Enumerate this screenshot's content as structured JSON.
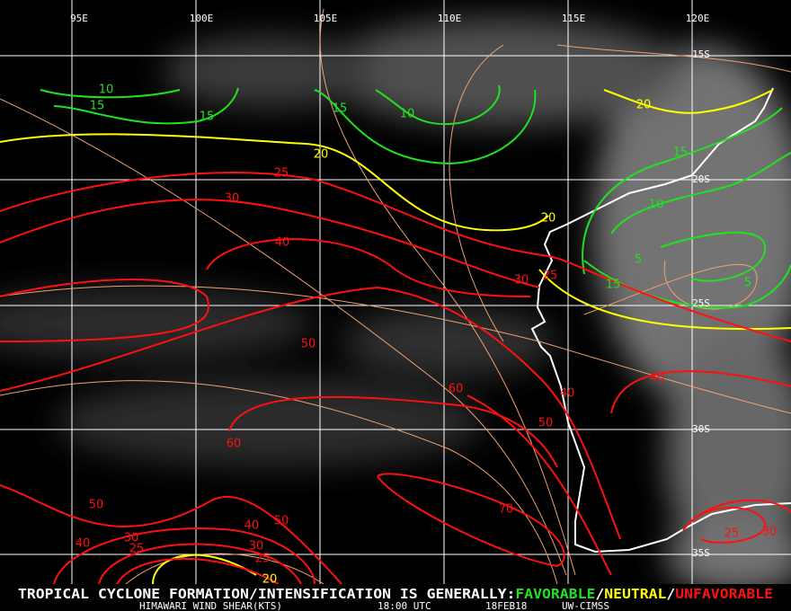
{
  "map": {
    "lon_labels": [
      "95E",
      "100E",
      "105E",
      "110E",
      "115E",
      "120E"
    ],
    "lat_labels": [
      "15S",
      "20S",
      "25S",
      "30S",
      "35S"
    ],
    "contour_labels": [
      10,
      15,
      15,
      15,
      10,
      15,
      10,
      5,
      15,
      5,
      20,
      20,
      20,
      20,
      25,
      30,
      40,
      30,
      25,
      50,
      60,
      40,
      40,
      50,
      60,
      50,
      70,
      40,
      50,
      30,
      25,
      40,
      30,
      25,
      25,
      30
    ],
    "footer": {
      "lead": "TROPICAL CYCLONE FORMATION/INTENSIFICATION IS GENERALLY:",
      "favorable": "FAVORABLE",
      "sep1": "/",
      "neutral": "NEUTRAL",
      "sep2": "/",
      "unfavorable": "UNFAVORABLE"
    },
    "subfooter": {
      "product": "HIMAWARI WIND SHEAR(KTS)",
      "time": "18:00 UTC",
      "date": "18FEB18",
      "source": "UW-CIMSS"
    }
  }
}
